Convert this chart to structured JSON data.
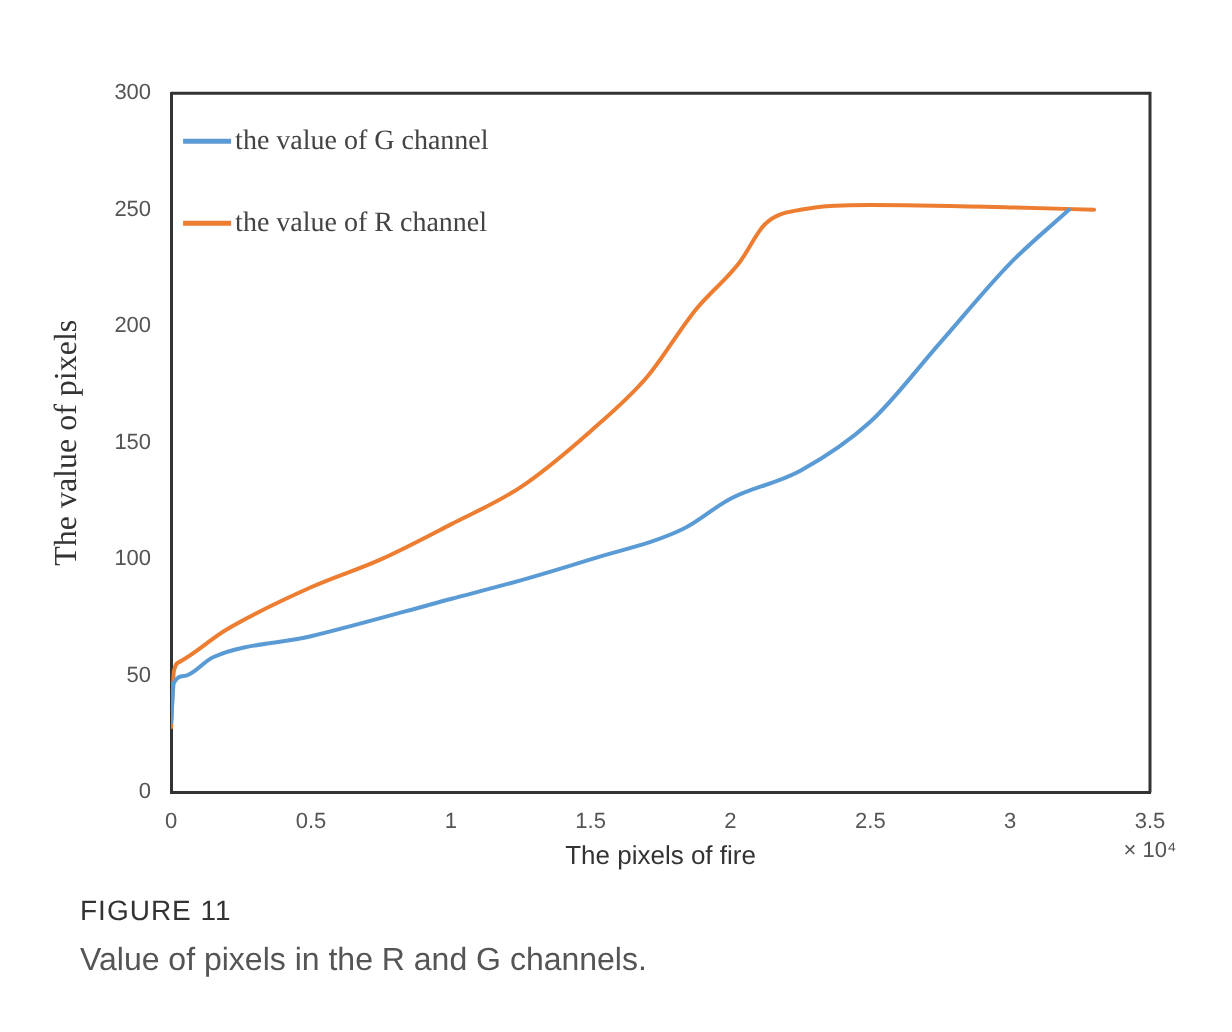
{
  "chart_data": {
    "type": "line",
    "xlabel": "The pixels of fire",
    "ylabel": "The value of pixels",
    "annotations": [
      "× 10⁴",
      "FIGURE 11",
      "Value of pixels in the R and G channels."
    ],
    "xlim": [
      0,
      3.5
    ],
    "xticks": [
      0,
      0.5,
      1,
      1.5,
      2,
      2.5,
      3,
      3.5
    ],
    "ylim": [
      0,
      300
    ],
    "yticks": [
      0,
      50,
      100,
      150,
      200,
      250,
      300
    ],
    "grid": false,
    "legend": "top left",
    "marker": "none",
    "line_style": "solid",
    "series": [
      {
        "name": "the value of G channel",
        "color": "#5b9bd5",
        "x": [
          0,
          0.01,
          0.05,
          0.15,
          0.5,
          1,
          1.25,
          1.5,
          1.83,
          2,
          2.25,
          2.5,
          2.75,
          3,
          3.21
        ],
        "values": [
          30,
          47,
          50,
          58,
          67,
          83,
          91,
          100,
          113,
          126,
          138,
          159,
          193,
          227,
          250
        ]
      },
      {
        "name": "the value of R channel",
        "color": "#ed7d31",
        "x": [
          0,
          0.01,
          0.03,
          0.2,
          0.5,
          0.75,
          1,
          1.25,
          1.5,
          1.7,
          1.875,
          2.03,
          2.125,
          2.25,
          2.5,
          3,
          3.3
        ],
        "values": [
          28,
          52,
          56,
          70,
          88,
          100,
          115,
          131,
          155,
          178,
          207,
          227,
          244,
          250,
          252,
          251,
          250
        ]
      }
    ]
  }
}
